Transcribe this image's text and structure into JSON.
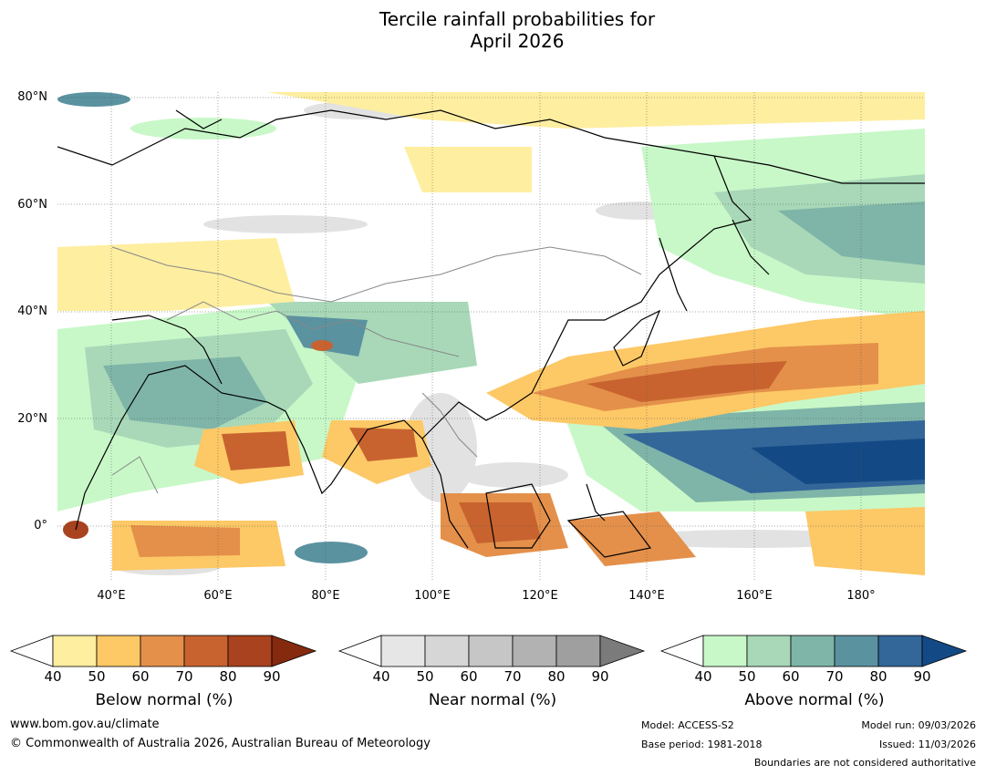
{
  "title_line1": "Tercile rainfall probabilities for",
  "title_line2": "April 2026",
  "map": {
    "lat_labels": [
      "80°N",
      "60°N",
      "40°N",
      "20°N",
      "0°"
    ],
    "lon_labels": [
      "40°E",
      "60°E",
      "80°E",
      "100°E",
      "120°E",
      "140°E",
      "160°E",
      "180°"
    ],
    "extent": {
      "lon_min": 30,
      "lon_max": 192,
      "lat_min": -10,
      "lat_max": 81
    }
  },
  "legends": [
    {
      "title": "Below normal (%)",
      "ticks": [
        "40",
        "50",
        "60",
        "70",
        "80",
        "90"
      ],
      "colors": [
        "#ffffff",
        "#feeea0",
        "#fdc866",
        "#e4904a",
        "#c8632f",
        "#a8421f",
        "#85290f"
      ]
    },
    {
      "title": "Near normal (%)",
      "ticks": [
        "40",
        "50",
        "60",
        "70",
        "80",
        "90"
      ],
      "colors": [
        "#ffffff",
        "#e6e6e6",
        "#d6d6d6",
        "#c6c6c6",
        "#b2b2b2",
        "#9f9f9f",
        "#7b7b7b"
      ]
    },
    {
      "title": "Above normal (%)",
      "ticks": [
        "40",
        "50",
        "60",
        "70",
        "80",
        "90"
      ],
      "colors": [
        "#ffffff",
        "#c8f8c8",
        "#a8d8b8",
        "#7fb5a8",
        "#5a92a0",
        "#336699",
        "#134a85"
      ]
    }
  ],
  "footer": {
    "website": "www.bom.gov.au/climate",
    "copyright": "© Commonwealth of Australia 2026, Australian Bureau of Meteorology",
    "model": "Model: ACCESS-S2",
    "base_period": "Base period: 1981-2018",
    "model_run": "Model run: 09/03/2026",
    "issued": "Issued: 11/03/2026",
    "disclaimer": "Boundaries are not considered authoritative"
  }
}
